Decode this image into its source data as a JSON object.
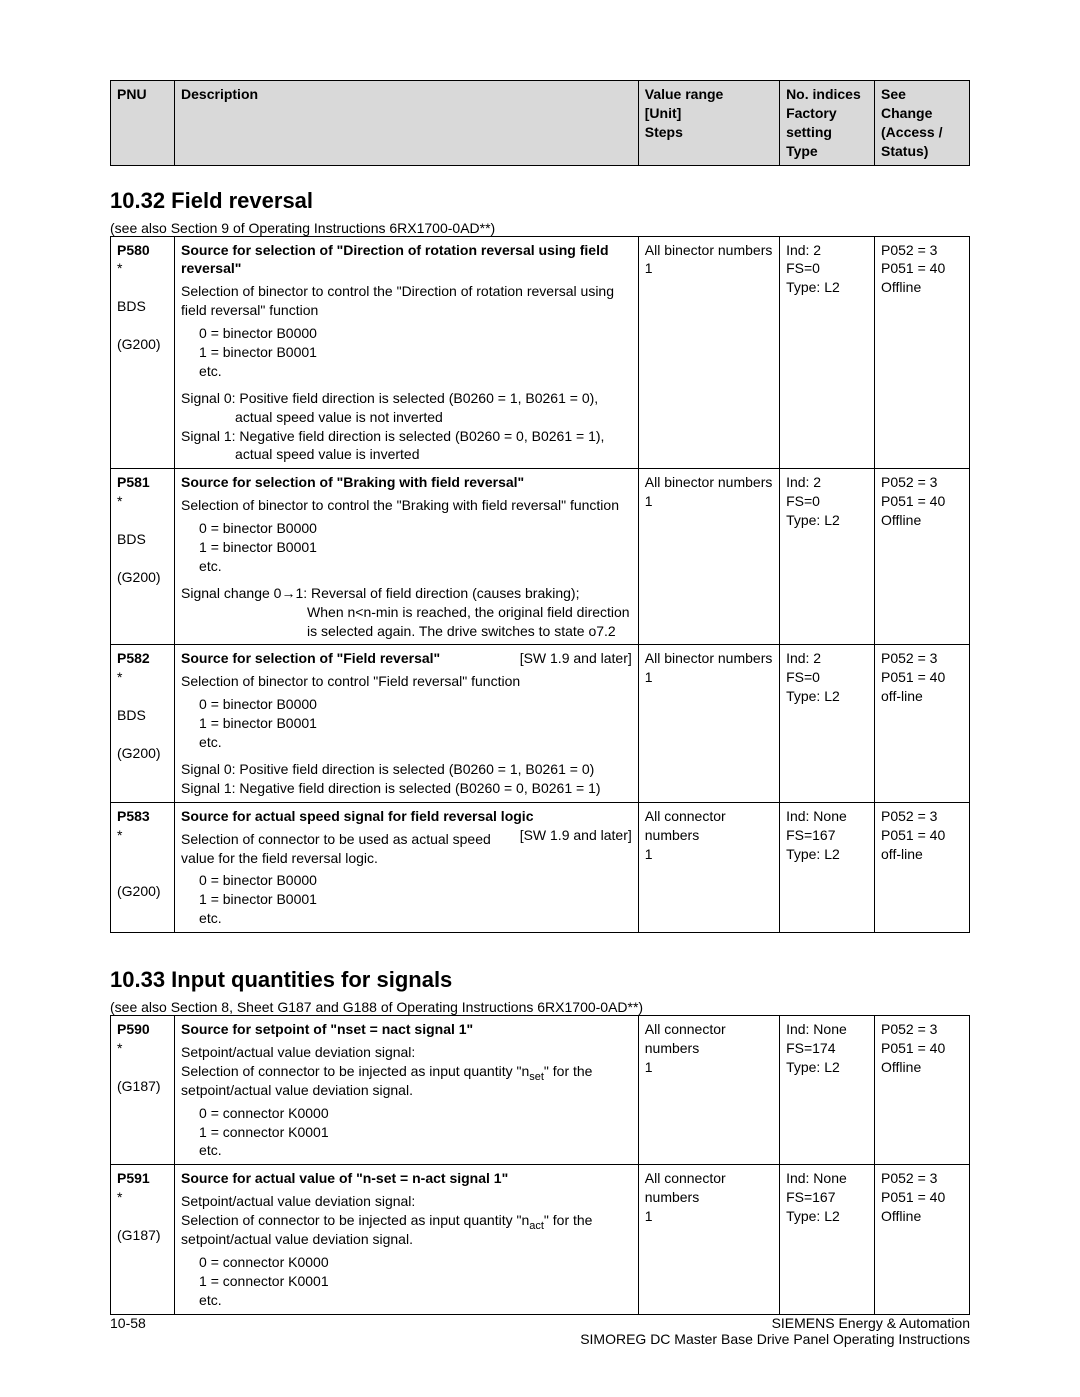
{
  "columns": {
    "pnu": "PNU",
    "desc": "Description",
    "range": "Value range\n[Unit]\nSteps",
    "indices": "No. indices\nFactory setting\nType",
    "see": "See\nChange\n(Access / Status)"
  },
  "section1": {
    "heading": "10.32  Field reversal",
    "note": "(see also Section 9 of Operating Instructions 6RX1700-0AD**)"
  },
  "rows1": [
    {
      "pnu": "P580\n*\n\nBDS\n\n(G200)",
      "title": "Source for selection of \"Direction of rotation reversal using field reversal\"",
      "body1": "Selection of binector to control the \"Direction of rotation reversal using field reversal\" function",
      "opts": [
        "0 = binector B0000",
        "1 = binector B0001",
        "etc."
      ],
      "sig": [
        "Signal 0:  Positive field direction is selected (B0260 = 1, B0261 = 0),",
        "actual speed value is not inverted",
        "Signal 1:  Negative field direction is selected (B0260 = 0, B0261 = 1),",
        "actual speed value is inverted"
      ],
      "range": "All binector numbers\n1",
      "ind": "Ind: 2\nFS=0\nType: L2",
      "see": "P052 = 3\nP051 = 40\nOffline"
    },
    {
      "pnu": "P581\n*\n\nBDS\n\n(G200)",
      "title": "Source for selection of \"Braking with field reversal\"",
      "body1": "Selection of binector to control the \"Braking with field reversal\" function",
      "opts": [
        "0 = binector B0000",
        "1 = binector B0001",
        "etc."
      ],
      "sig": [
        "Signal change 0→1:  Reversal of field direction (causes braking);",
        "When n<n-min is reached, the original field direction is selected again. The drive switches to state o7.2"
      ],
      "range": "All binector numbers\n1",
      "ind": "Ind: 2\nFS=0\nType: L2",
      "see": "P052 = 3\nP051 = 40\nOffline"
    },
    {
      "pnu": "P582\n*\n\nBDS\n\n(G200)",
      "title": "Source for selection of \"Field reversal\"",
      "sw": "[SW 1.9 and later]",
      "body1": "Selection of binector to control \"Field reversal\" function",
      "opts": [
        "0 = binector B0000",
        "1 = binector B0001",
        "etc."
      ],
      "sig": [
        "Signal 0:  Positive field direction is selected (B0260 = 1, B0261 = 0)",
        "Signal 1:  Negative field direction is selected (B0260 = 0, B0261 = 1)"
      ],
      "range": "All binector numbers\n1",
      "ind": "Ind: 2\nFS=0\nType: L2",
      "see": "P052 = 3\nP051 = 40\noff-line"
    },
    {
      "pnu": "P583\n*\n\n\n(G200)",
      "title": "Source for actual speed signal for field reversal logic",
      "sw": "[SW 1.9 and later]",
      "body1": "Selection of connector to be used as actual speed value for the field reversal logic.",
      "opts": [
        "0 = binector B0000",
        "1 = binector B0001",
        "etc."
      ],
      "sig": [],
      "range": "All connector numbers\n1",
      "ind": "Ind: None\nFS=167\nType: L2",
      "see": "P052 = 3\nP051 = 40\noff-line"
    }
  ],
  "section2": {
    "heading": "10.33  Input quantities for signals",
    "note": "(see also Section 8, Sheet G187 and G188 of Operating Instructions 6RX1700-0AD**)"
  },
  "rows2": [
    {
      "pnu": "P590\n*\n\n(G187)",
      "title": "Source for setpoint of \"nset = nact signal 1\"",
      "body1": "Setpoint/actual value deviation signal:\nSelection of connector to be injected as input quantity \"n",
      "sub": "set",
      "body1b": "\" for the setpoint/actual value deviation signal.",
      "opts": [
        "0 = connector K0000",
        "1 = connector K0001",
        "etc."
      ],
      "range": "All connector numbers\n1",
      "ind": "Ind: None\nFS=174\nType: L2",
      "see": "P052 = 3\nP051 = 40\nOffline"
    },
    {
      "pnu": "P591\n*\n\n(G187)",
      "title": "Source for actual value of \"n-set = n-act signal 1\"",
      "body1": "Setpoint/actual value deviation signal:\nSelection of connector to be injected as input quantity \"n",
      "sub": "act",
      "body1b": "\" for the setpoint/actual value deviation signal.",
      "opts": [
        "0 = connector K0000",
        "1 = connector K0001",
        "etc."
      ],
      "range": "All connector numbers\n1",
      "ind": "Ind: None\nFS=167\nType: L2",
      "see": "P052 = 3\nP051 = 40\nOffline"
    }
  ],
  "footer": {
    "page": "10-58",
    "company": "SIEMENS Energy & Automation",
    "doc": "SIMOREG DC Master Base Drive Panel  Operating Instructions"
  }
}
